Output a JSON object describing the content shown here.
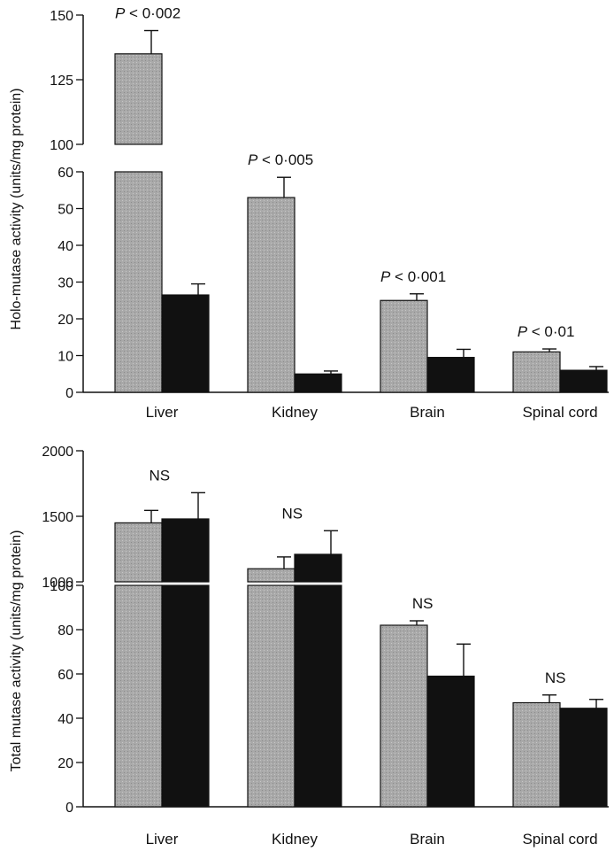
{
  "colors": {
    "control": "#a9a9a9",
    "treated": "#111111",
    "axis": "#111111"
  },
  "chart_data": [
    {
      "type": "bar",
      "ylabel": "Holo-mutase activity (units/mg protein)",
      "broken_axis": true,
      "segments": [
        {
          "ylim": [
            0,
            60
          ],
          "ticks": [
            "0",
            "10",
            "20",
            "30",
            "40",
            "50",
            "60"
          ],
          "tick_values": [
            0,
            10,
            20,
            30,
            40,
            50,
            60
          ]
        },
        {
          "ylim": [
            100,
            150
          ],
          "ticks": [
            "100",
            "125",
            "150"
          ],
          "tick_values": [
            100,
            125,
            150
          ]
        }
      ],
      "categories": [
        "Liver",
        "Kidney",
        "Brain",
        "Spinal cord"
      ],
      "series": [
        {
          "values": [
            135,
            53,
            25,
            11
          ],
          "errors": [
            9,
            5.5,
            1.8,
            0.8
          ]
        },
        {
          "values": [
            26.5,
            5,
            9.5,
            6
          ],
          "errors": [
            3,
            0.8,
            2.2,
            1
          ]
        }
      ],
      "annotations": [
        {
          "category": 0,
          "text_italic": "P",
          "text": " < 0·002"
        },
        {
          "category": 1,
          "text_italic": "P",
          "text": " < 0·005"
        },
        {
          "category": 2,
          "text_italic": "P",
          "text": " < 0·001"
        },
        {
          "category": 3,
          "text_italic": "P",
          "text": " < 0·01"
        }
      ]
    },
    {
      "type": "bar",
      "ylabel": "Total mutase activity (units/mg protein)",
      "broken_axis": true,
      "segments": [
        {
          "ylim": [
            0,
            100
          ],
          "ticks": [
            "0",
            "20",
            "40",
            "60",
            "80",
            "100"
          ],
          "tick_values": [
            0,
            20,
            40,
            60,
            80,
            100
          ]
        },
        {
          "ylim": [
            1000,
            2000
          ],
          "ticks": [
            "1000",
            "1500",
            "2000"
          ],
          "tick_values": [
            1000,
            1500,
            2000
          ]
        }
      ],
      "categories": [
        "Liver",
        "Kidney",
        "Brain",
        "Spinal cord"
      ],
      "series": [
        {
          "values": [
            1450,
            1100,
            82,
            47
          ],
          "errors": [
            95,
            90,
            2,
            3.5
          ]
        },
        {
          "values": [
            1480,
            1210,
            59,
            44.5
          ],
          "errors": [
            200,
            180,
            14.5,
            4
          ]
        }
      ],
      "annotations": [
        {
          "category": 0,
          "text_italic": "",
          "text": "NS"
        },
        {
          "category": 1,
          "text_italic": "",
          "text": "NS"
        },
        {
          "category": 2,
          "text_italic": "",
          "text": "NS"
        },
        {
          "category": 3,
          "text_italic": "",
          "text": "NS"
        }
      ]
    }
  ]
}
